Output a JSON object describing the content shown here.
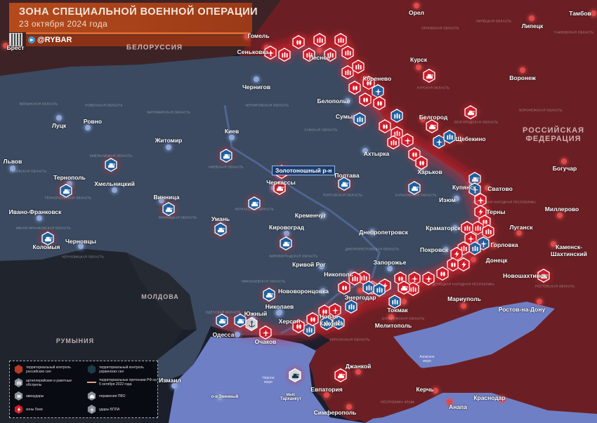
{
  "header": {
    "title": "ЗОНА СПЕЦИАЛЬНОЙ ВОЕННОЙ ОПЕРАЦИИ",
    "date": "23 октября 2024 года",
    "brand": "@RYBAR"
  },
  "colors": {
    "russia": "#6b1f24",
    "ukraine": "#3b4a60",
    "sea": "#6f7fc6",
    "front_glow": "#e0202e",
    "russian_marker": "#d01c2a",
    "ukrainian_marker": "#1f5f9e",
    "title_bar": "#b54a1c"
  },
  "countries": [
    "БЕЛОРУССИЯ",
    "РОССИЙСКАЯ ФЕДЕРАЦИЯ",
    "МОЛДОВА",
    "РУМЫНИЯ"
  ],
  "seas": [
    "Черное море",
    "Азовское море"
  ],
  "highlight_label": "Золотоношный р-н",
  "cities": [
    "Гомель",
    "Брест",
    "Сеньковка",
    "Чернигов",
    "Лесное",
    "Коренево",
    "Белополье",
    "Сумы",
    "Орел",
    "Липецк",
    "Тамбов",
    "Курск",
    "Воронеж",
    "Белгород",
    "Щебекино",
    "Ахтырка",
    "Харьков",
    "Купянск",
    "Сватово",
    "Богучар",
    "Изюм",
    "Терны",
    "Миллерово",
    "Краматорск",
    "Луганск",
    "Горловка",
    "Покровск",
    "Каменск-Шахтинский",
    "Донецк",
    "Новошахтинск",
    "Мариуполь",
    "Ростов-на-Дону",
    "Токмак",
    "Мелитополь",
    "Николаев",
    "Нововоронцовка",
    "Никополь",
    "Энергодар",
    "Запорожье",
    "Днепропетровск",
    "Кривой Рог",
    "Кременчуг",
    "Кировоград",
    "Полтава",
    "Черкассы",
    "Умань",
    "Винница",
    "Хмельницкий",
    "Житомир",
    "Киев",
    "Ровно",
    "Луцк",
    "Львов",
    "Тернополь",
    "Ивано-Франковск",
    "Черновцы",
    "Коломыя",
    "Одесса",
    "Южный",
    "Херсон",
    "Очаков",
    "Новая Каховка",
    "Джанкой",
    "Евпатория",
    "Симферополь",
    "Керчь",
    "Анапа",
    "Краснодар",
    "Измаил",
    "о-в Змеиный",
    "мыс Тарханкут"
  ],
  "oblasts": [
    "Орловская область",
    "Липецкая область",
    "Тамбовская область",
    "Курская область",
    "Белгородская область",
    "Воронежская область",
    "Луганская народная республика",
    "Донецкая народная республика",
    "Ростовская область",
    "Херсонская область",
    "Запорожская область",
    "Республика Крым",
    "Харьковская область",
    "Полтавская область",
    "Сумская область",
    "Черниговская область",
    "Киевская область",
    "Житомирская область",
    "Волынская область",
    "Ровенская область",
    "Львовская область",
    "Тернопольская область",
    "Хмельницкая область",
    "Винницкая область",
    "Ивано-Франковская область",
    "Черновицкая область",
    "Черкасская область",
    "Кировоградская область",
    "Николаевская область",
    "Одесская область",
    "Днепропетровская область"
  ],
  "icons": {
    "air-defense": "▰",
    "artillery": "⦀",
    "airstrike": "⁞",
    "combat": "ϟ",
    "drone": "✈",
    "anchor": "⚓"
  },
  "markers": [
    {
      "icon": "drone",
      "side": "r"
    },
    {
      "icon": "artillery",
      "side": "r"
    },
    {
      "icon": "airstrike",
      "side": "r"
    },
    {
      "icon": "artillery",
      "side": "r"
    },
    {
      "icon": "artillery",
      "side": "r"
    },
    {
      "icon": "artillery",
      "side": "r"
    },
    {
      "icon": "artillery",
      "side": "r"
    },
    {
      "icon": "artillery",
      "side": "r"
    },
    {
      "icon": "artillery",
      "side": "r"
    },
    {
      "icon": "artillery",
      "side": "r"
    },
    {
      "icon": "airstrike",
      "side": "r"
    },
    {
      "icon": "airstrike",
      "side": "r"
    },
    {
      "icon": "drone",
      "side": "b"
    },
    {
      "icon": "airstrike",
      "side": "r"
    },
    {
      "icon": "airstrike",
      "side": "r"
    },
    {
      "icon": "artillery",
      "side": "b"
    },
    {
      "icon": "artillery",
      "side": "b"
    },
    {
      "icon": "airstrike",
      "side": "r"
    },
    {
      "icon": "artillery",
      "side": "r"
    },
    {
      "icon": "drone",
      "side": "r"
    },
    {
      "icon": "artillery",
      "side": "r"
    },
    {
      "icon": "airstrike",
      "side": "r"
    },
    {
      "icon": "airstrike",
      "side": "r"
    },
    {
      "icon": "air-defense",
      "side": "r"
    },
    {
      "icon": "drone",
      "side": "b"
    },
    {
      "icon": "artillery",
      "side": "b"
    },
    {
      "icon": "air-defense",
      "side": "r"
    },
    {
      "icon": "air-defense",
      "side": "r"
    },
    {
      "icon": "air-defense",
      "side": "b"
    },
    {
      "icon": "drone",
      "side": "b"
    },
    {
      "icon": "drone",
      "side": "r"
    },
    {
      "icon": "combat",
      "side": "r"
    },
    {
      "icon": "airstrike",
      "side": "r"
    },
    {
      "icon": "artillery",
      "side": "r"
    },
    {
      "icon": "artillery",
      "side": "r"
    },
    {
      "icon": "artillery",
      "side": "r"
    },
    {
      "icon": "drone",
      "side": "r"
    },
    {
      "icon": "drone",
      "side": "b"
    },
    {
      "icon": "artillery",
      "side": "b"
    },
    {
      "icon": "artillery",
      "side": "r"
    },
    {
      "icon": "combat",
      "side": "r"
    },
    {
      "icon": "airstrike",
      "side": "r"
    },
    {
      "icon": "combat",
      "side": "r"
    },
    {
      "icon": "airstrike",
      "side": "r"
    },
    {
      "icon": "drone",
      "side": "r"
    },
    {
      "icon": "drone",
      "side": "r"
    },
    {
      "icon": "airstrike",
      "side": "r"
    },
    {
      "icon": "artillery",
      "side": "r"
    },
    {
      "icon": "air-defense",
      "side": "r"
    },
    {
      "icon": "artillery",
      "side": "b"
    },
    {
      "icon": "combat",
      "side": "r"
    },
    {
      "icon": "drone",
      "side": "r"
    },
    {
      "icon": "artillery",
      "side": "r"
    },
    {
      "icon": "artillery",
      "side": "r"
    },
    {
      "icon": "artillery",
      "side": "b"
    },
    {
      "icon": "artillery",
      "side": "b"
    },
    {
      "icon": "airstrike",
      "side": "r"
    },
    {
      "icon": "artillery",
      "side": "b"
    },
    {
      "icon": "airstrike",
      "side": "r"
    },
    {
      "icon": "drone",
      "side": "r"
    },
    {
      "icon": "artillery",
      "side": "b"
    },
    {
      "icon": "artillery",
      "side": "b"
    },
    {
      "icon": "artillery",
      "side": "b"
    },
    {
      "icon": "airstrike",
      "side": "r"
    },
    {
      "icon": "airstrike",
      "side": "r"
    },
    {
      "icon": "drone",
      "side": "r"
    },
    {
      "icon": "anchor",
      "side": "w"
    },
    {
      "icon": "air-defense",
      "side": "b"
    },
    {
      "icon": "air-defense",
      "side": "b"
    },
    {
      "icon": "air-defense",
      "side": "b"
    },
    {
      "icon": "air-defense",
      "side": "r"
    },
    {
      "icon": "air-defense",
      "side": "r"
    },
    {
      "icon": "air-defense",
      "side": "w"
    },
    {
      "icon": "air-defense",
      "side": "b"
    },
    {
      "icon": "air-defense",
      "side": "b"
    },
    {
      "icon": "air-defense",
      "side": "b"
    },
    {
      "icon": "air-defense",
      "side": "b"
    },
    {
      "icon": "air-defense",
      "side": "b"
    },
    {
      "icon": "air-defense",
      "side": "b"
    },
    {
      "icon": "air-defense",
      "side": "b"
    },
    {
      "icon": "air-defense",
      "side": "b"
    },
    {
      "icon": "air-defense",
      "side": "b"
    },
    {
      "icon": "air-defense",
      "side": "b"
    },
    {
      "icon": "artillery",
      "side": "r"
    },
    {
      "icon": "air-defense",
      "side": "r"
    }
  ],
  "legend": [
    {
      "label": "территориальный контроль российских сил",
      "icon": "hex-red"
    },
    {
      "label": "территориальный контроль украинских сил",
      "icon": "hex-blue"
    },
    {
      "label": "артиллерийские и ракетные обстрелы",
      "icon": "artillery"
    },
    {
      "label": "территориальные претензии РФ на 5 октября 2022 года",
      "icon": "line"
    },
    {
      "label": "авиаудары",
      "icon": "airstrike"
    },
    {
      "label": "поражения ПВО",
      "icon": "air-defense"
    },
    {
      "label": "зоны боев",
      "icon": "combat"
    },
    {
      "label": "удары БПЛА",
      "icon": "drone"
    }
  ]
}
